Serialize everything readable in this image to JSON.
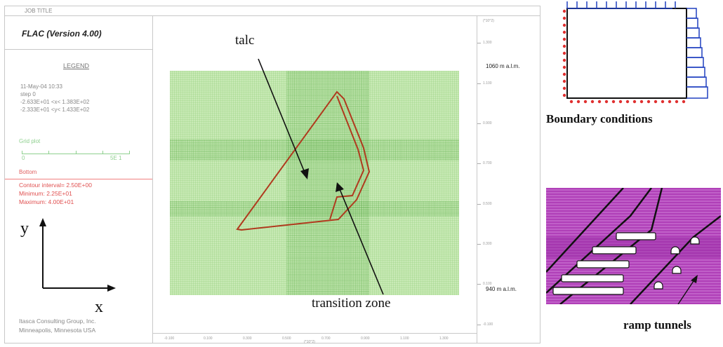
{
  "job_title": "JOB TITLE",
  "app_title": "FLAC (Version 4.00)",
  "legend": {
    "title": "LEGEND",
    "lines": [
      "11-May-04  10:33",
      "step      0",
      "-2.633E+01 <x< 1.383E+02",
      "-2.333E+01 <y< 1.433E+02"
    ],
    "grid_plot_label": "Grid plot",
    "grid_scale_min": "0",
    "grid_scale_max": "5E 1",
    "bottom_label": "Bottom",
    "contour_lines": [
      "Contour interval= 2.50E+00",
      "Minimum:  2.25E+01",
      "Maximum:  4.00E+01"
    ]
  },
  "footer": {
    "company": "Itasca Consulting Group, Inc.",
    "location": "Minneapolis, Minnesota  USA"
  },
  "axes": {
    "y_letter": "y",
    "x_letter": "x"
  },
  "right_scale_ticks": [
    "1.300",
    "1.100",
    "0.900",
    "0.700",
    "0.500",
    "0.300",
    "0.100",
    "-0.100"
  ],
  "bottom_scale_ticks": [
    "-0.100",
    "0.100",
    "0.300",
    "0.500",
    "0.700",
    "0.900",
    "1.100",
    "1.300"
  ],
  "scale_unit_top": "(*10^2)",
  "scale_unit_bottom": "(*10^2)",
  "elevations": {
    "top": "1060 m a.l.m.",
    "bottom": "940 m a.l.m."
  },
  "annotations": {
    "talc": "talc",
    "transition_zone": "transition zone"
  },
  "boundary_label": "Boundary conditions",
  "tunnel_label": "ramp tunnels",
  "colors": {
    "grid_green": "#7cc85a",
    "band_green": "#4fae3c",
    "contour_red": "#b03a1e",
    "magenta": "#b040b8",
    "bc_red": "#e03030",
    "bc_blue": "#2040c0"
  }
}
